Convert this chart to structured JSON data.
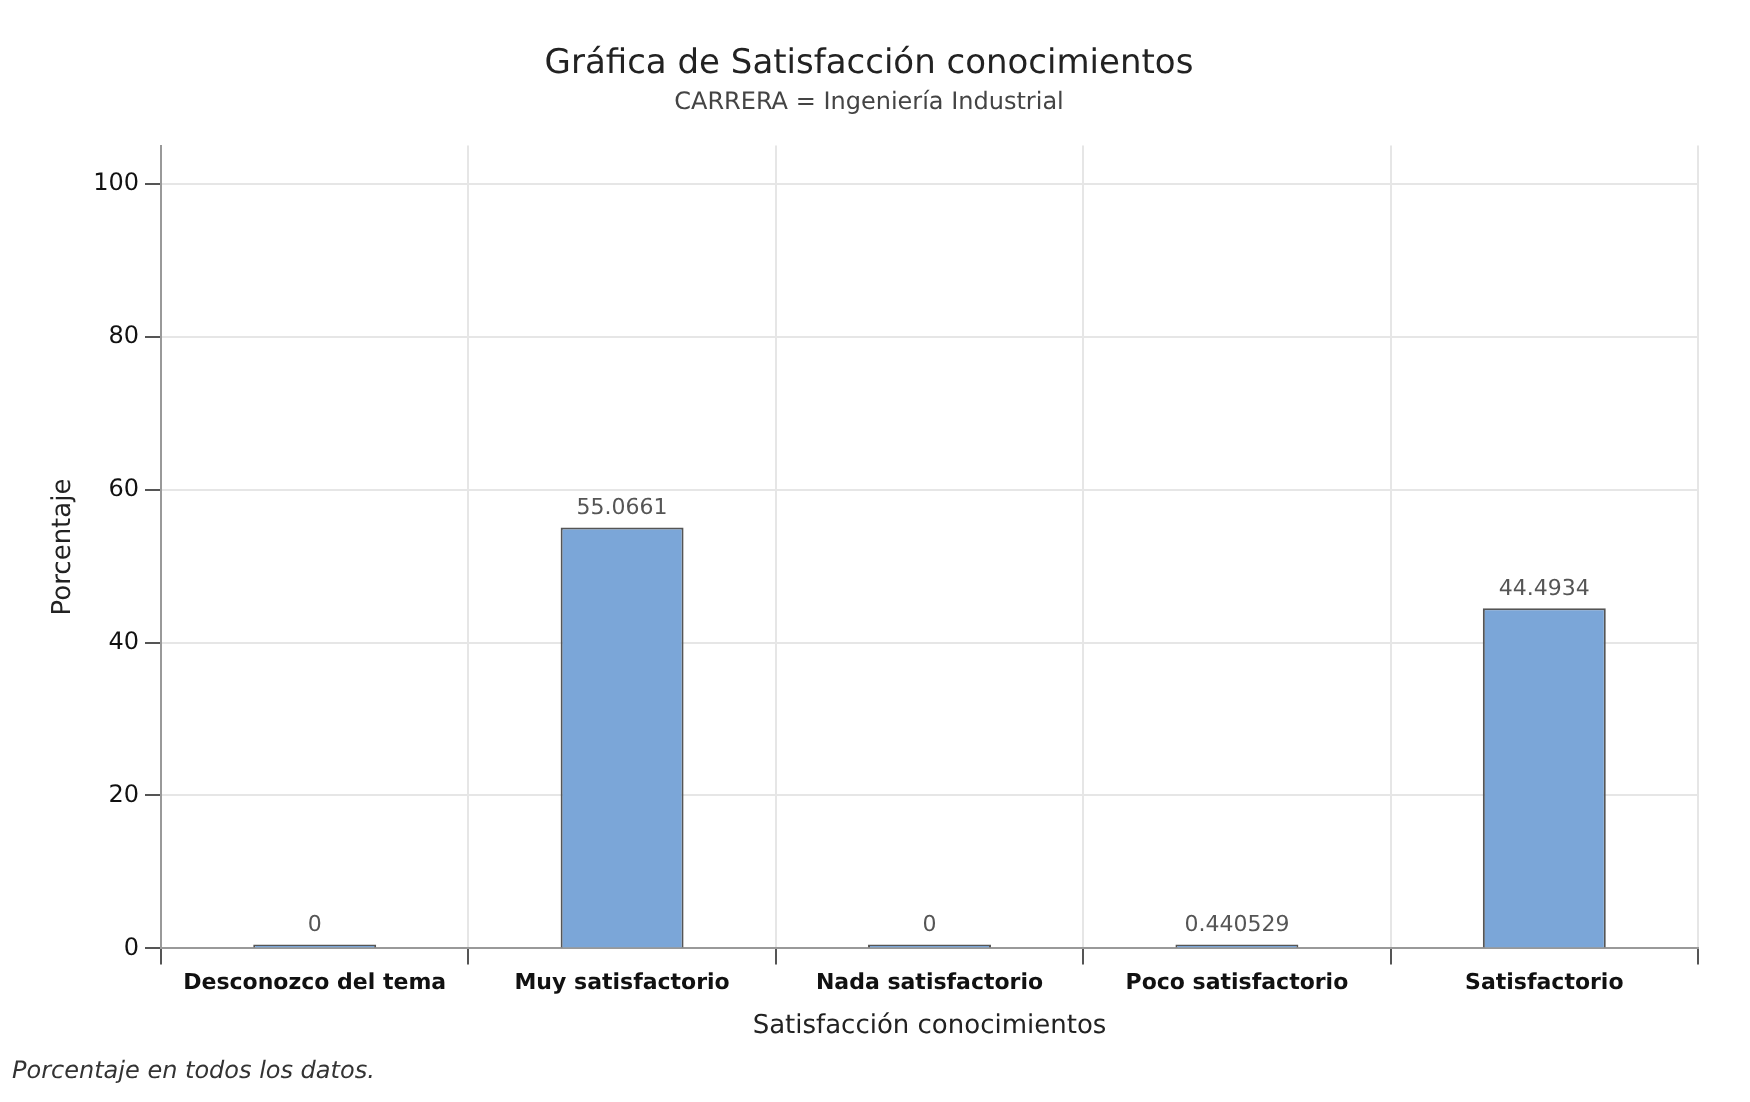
{
  "chart_data": {
    "type": "bar",
    "title": "Gráfica de Satisfacción conocimientos",
    "subtitle": "CARRERA = Ingeniería Industrial",
    "xlabel": "Satisfacción conocimientos",
    "ylabel": "Porcentaje",
    "categories": [
      "Desconozco del tema",
      "Muy satisfactorio",
      "Nada satisfactorio",
      "Poco satisfactorio",
      "Satisfactorio"
    ],
    "values": [
      0,
      55.0661,
      0,
      0.440529,
      44.4934
    ],
    "color": "#7ba6d8",
    "ylim": [
      0,
      105
    ],
    "yticks": [
      0,
      20,
      40,
      60,
      80,
      100
    ],
    "grid": true,
    "data_labels": true,
    "annotations": [
      "Porcentaje en todos los datos."
    ]
  }
}
